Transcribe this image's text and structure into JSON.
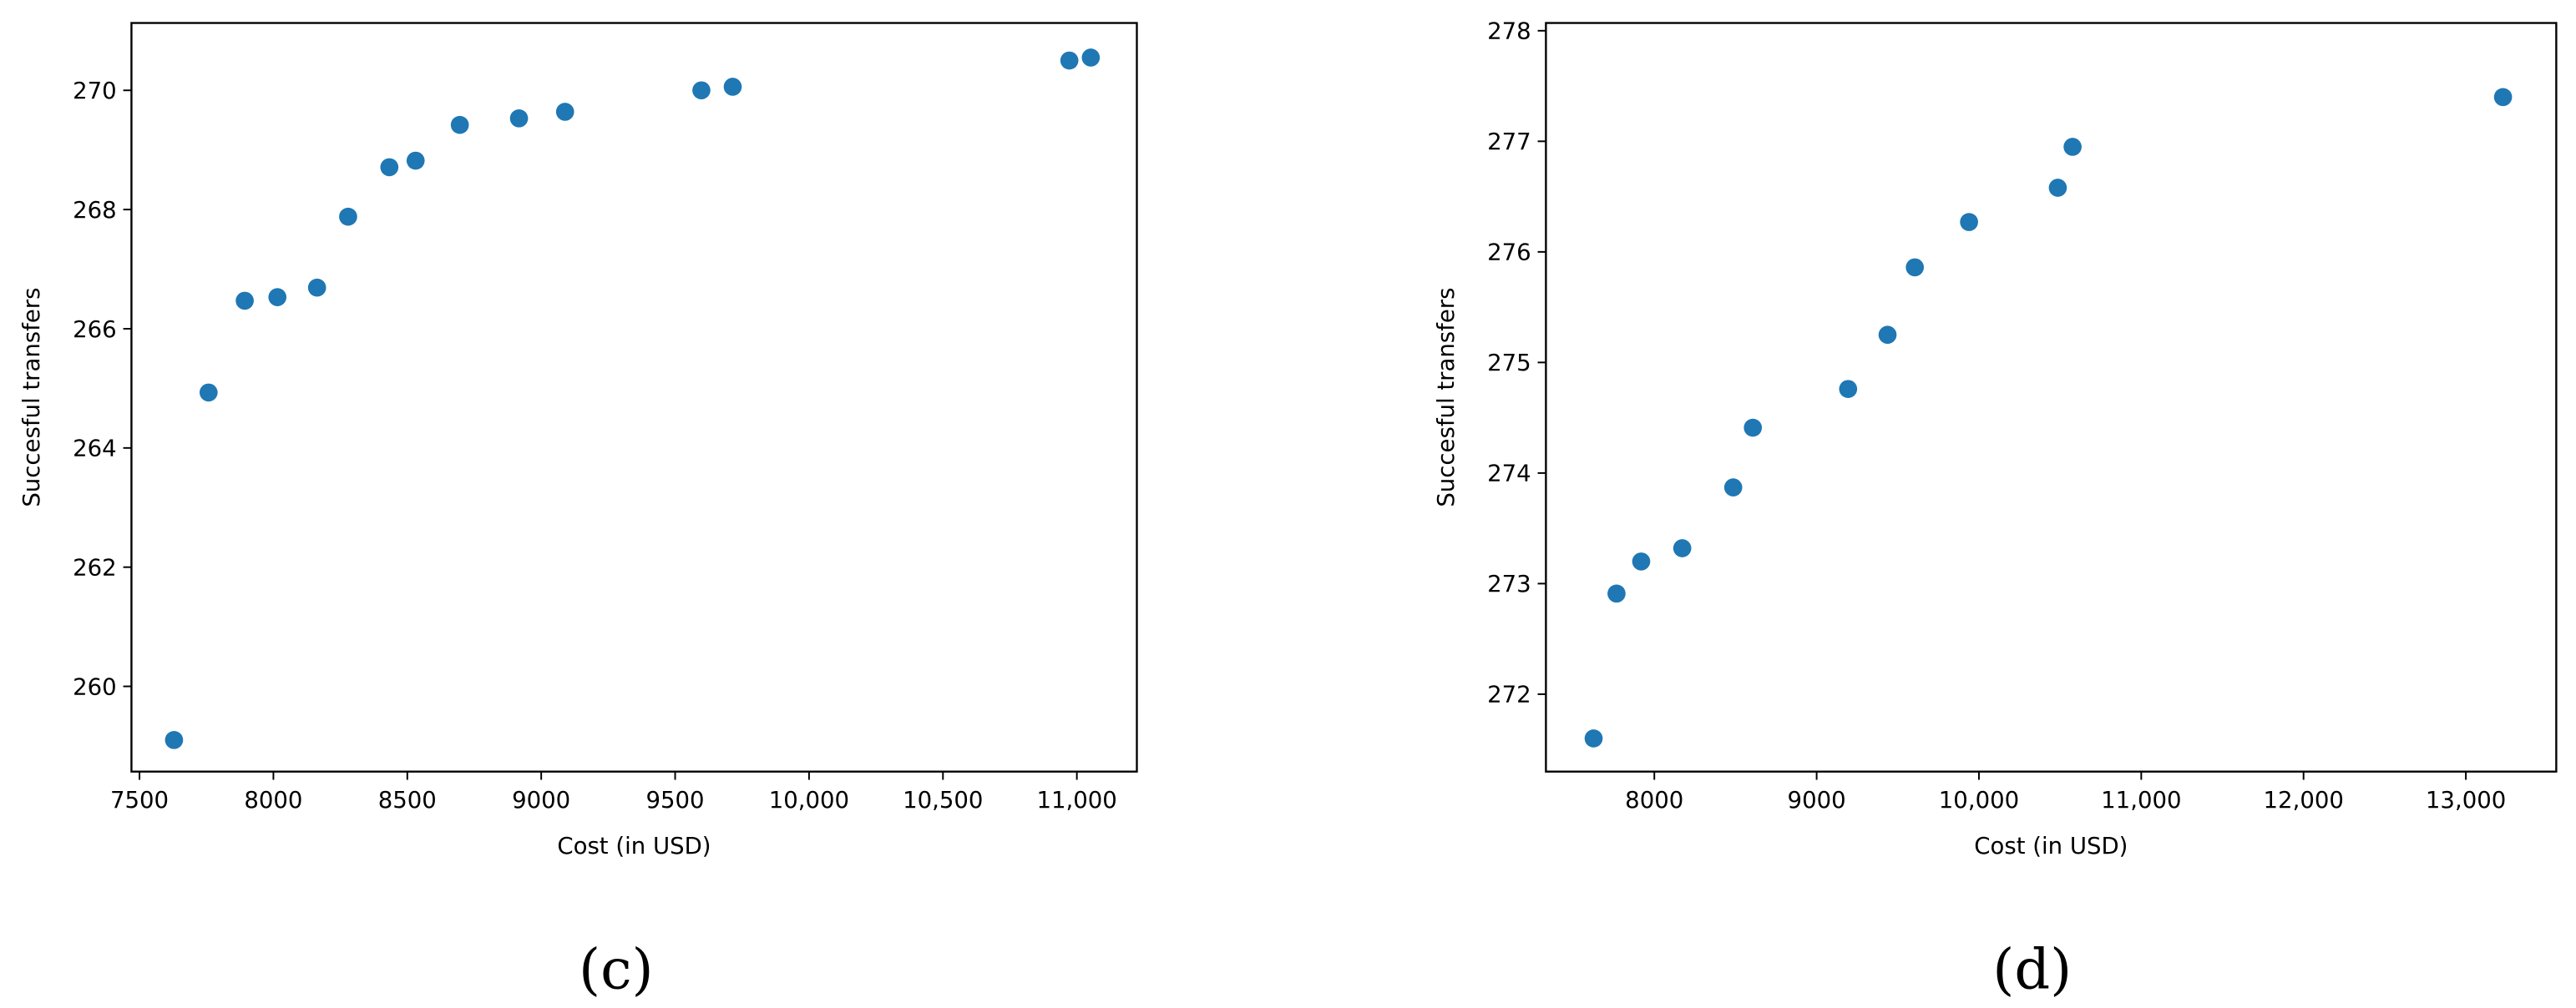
{
  "chart_data": [
    {
      "type": "scatter",
      "caption": "(c)",
      "x_label": "Cost (in USD)",
      "y_label": "Succesful transfers",
      "color": "#1f77b4",
      "x": [
        7629,
        7758,
        7893,
        8015,
        8163,
        8279,
        8433,
        8531,
        8696,
        8917,
        9089,
        9598,
        9715,
        10972,
        11052
      ],
      "values": [
        259.1,
        264.93,
        266.47,
        266.53,
        266.69,
        267.88,
        268.71,
        268.82,
        269.42,
        269.53,
        269.64,
        270.0,
        270.06,
        270.5,
        270.55
      ],
      "xlim": [
        7470,
        11224
      ],
      "ylim": [
        258.57,
        271.13
      ],
      "xticks": [
        7500,
        8000,
        8500,
        9000,
        9500,
        {
          "value": 10000,
          "label": "10,000"
        },
        {
          "value": 10500,
          "label": "10,500"
        },
        {
          "value": 11000,
          "label": "11,000"
        }
      ],
      "yticks": [
        260,
        262,
        264,
        266,
        268,
        270
      ]
    },
    {
      "type": "scatter",
      "caption": "(d)",
      "x_label": "Cost (in USD)",
      "y_label": "Succesful transfers",
      "color": "#1f77b4",
      "x": [
        7626,
        7767,
        7919,
        8172,
        8486,
        8607,
        9194,
        9437,
        9605,
        9939,
        10486,
        10577,
        13229
      ],
      "values": [
        271.6,
        272.91,
        273.2,
        273.32,
        273.87,
        274.41,
        274.76,
        275.25,
        275.86,
        276.27,
        276.58,
        276.95,
        277.4
      ],
      "xlim": [
        7332,
        13557
      ],
      "ylim": [
        271.3,
        278.07
      ],
      "xticks": [
        8000,
        9000,
        {
          "value": 10000,
          "label": "10,000"
        },
        {
          "value": 11000,
          "label": "11,000"
        },
        {
          "value": 12000,
          "label": "12,000"
        },
        {
          "value": 13000,
          "label": "13,000"
        }
      ],
      "yticks": [
        272,
        273,
        274,
        275,
        276,
        277,
        278
      ]
    }
  ]
}
